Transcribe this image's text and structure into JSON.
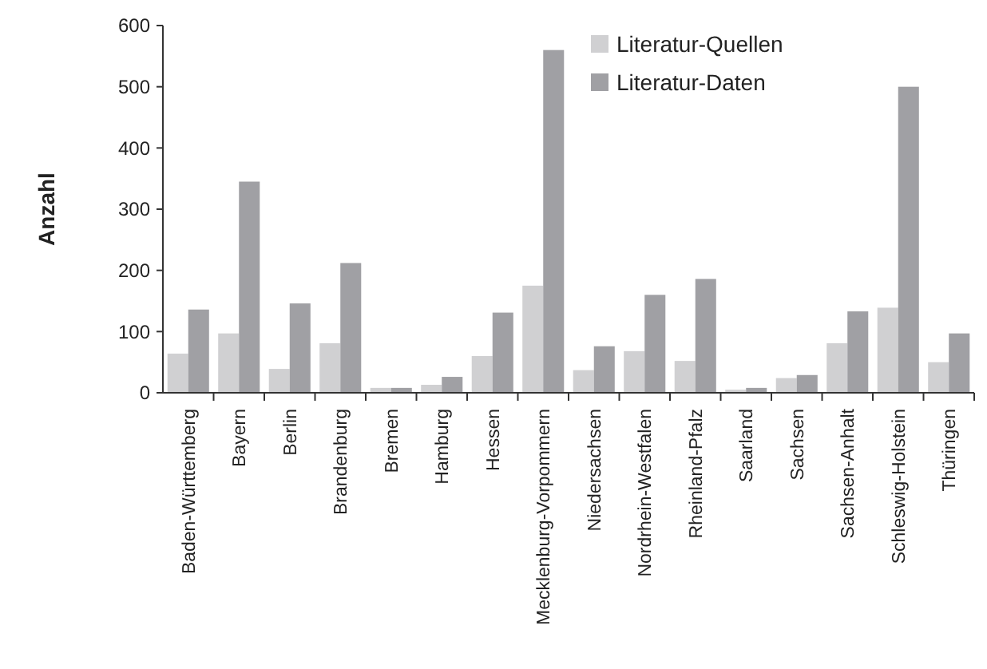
{
  "chart_data": {
    "type": "bar",
    "ylabel": "Anzahl",
    "categories": [
      "Baden-Württemberg",
      "Bayern",
      "Berlin",
      "Brandenburg",
      "Bremen",
      "Hamburg",
      "Hessen",
      "Mecklenburg-Vorpommern",
      "Niedersachsen",
      "Nordrhein-Westfalen",
      "Rheinland-Pfalz",
      "Saarland",
      "Sachsen",
      "Sachsen-Anhalt",
      "Schleswig-Holstein",
      "Thüringen"
    ],
    "series": [
      {
        "name": "Literatur-Quellen",
        "color": "#d0d0d2",
        "values": [
          64,
          97,
          39,
          81,
          8,
          13,
          60,
          175,
          37,
          68,
          52,
          5,
          24,
          81,
          139,
          50
        ]
      },
      {
        "name": "Literatur-Daten",
        "color": "#a0a0a4",
        "values": [
          136,
          345,
          146,
          212,
          8,
          26,
          131,
          560,
          76,
          160,
          186,
          8,
          29,
          133,
          500,
          97
        ]
      }
    ],
    "ylim": [
      0,
      600
    ],
    "yticks": [
      0,
      100,
      200,
      300,
      400,
      500,
      600
    ],
    "grid": false,
    "legend": "top right"
  }
}
